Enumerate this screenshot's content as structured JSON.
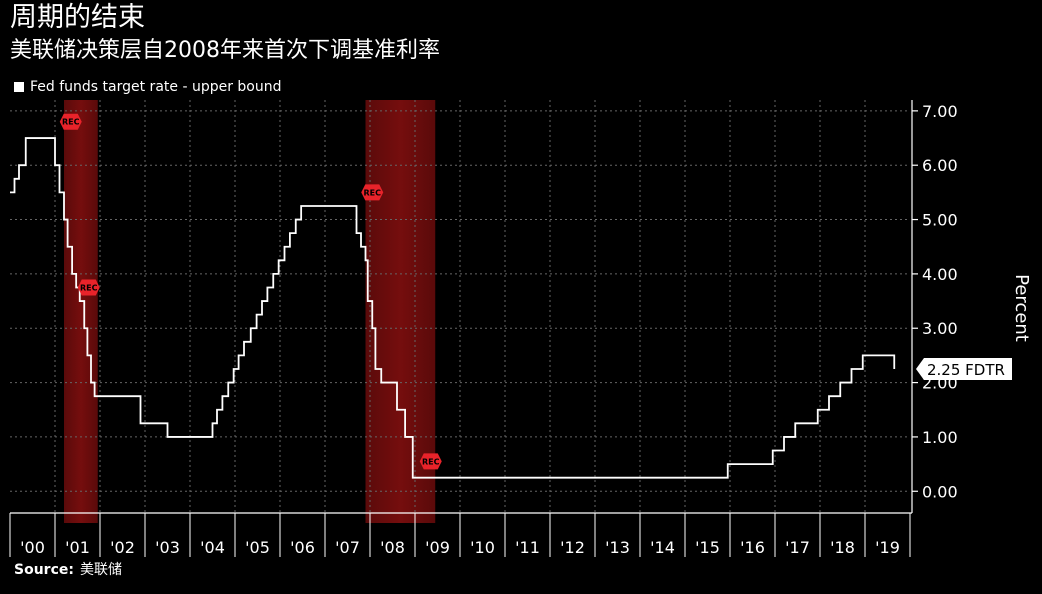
{
  "header": {
    "title": "周期的结束",
    "subtitle": "美联储决策层自2008年来首次下调基准利率"
  },
  "legend": {
    "label": "Fed funds target rate - upper bound",
    "color": "#ffffff"
  },
  "source": {
    "label": "Source:",
    "value": "美联储"
  },
  "last_value": {
    "label": "2.25 FDTR"
  },
  "colors": {
    "line": "#ffffff",
    "recession": "#8a1010",
    "rec_tag": "#e8232a",
    "grid": "#666666",
    "background": "#000000"
  },
  "chart_data": {
    "type": "line",
    "ylabel": "Percent",
    "ylim": [
      -0.4,
      7.2
    ],
    "xlim": [
      2000.0,
      2020.0
    ],
    "yticks": [
      7,
      6,
      5,
      4,
      3,
      2,
      1,
      0
    ],
    "ytick_labels": [
      "7.00",
      "6.00",
      "5.00",
      "4.00",
      "3.00",
      "2.00",
      "1.00",
      "0.00"
    ],
    "xtick_labels": [
      "'00",
      "'01",
      "'02",
      "'03",
      "'04",
      "'05",
      "'06",
      "'07",
      "'08",
      "'09",
      "'10",
      "'11",
      "'12",
      "'13",
      "'14",
      "'15",
      "'16",
      "'17",
      "'18",
      "'19"
    ],
    "grid": true,
    "recessions": [
      {
        "start": 2001.2,
        "end": 2001.95,
        "label": "REC"
      },
      {
        "start": 2007.9,
        "end": 2009.45,
        "label": "REC"
      }
    ],
    "rec_tags": [
      {
        "x": 2001.35,
        "y": 6.8
      },
      {
        "x": 2001.75,
        "y": 3.75
      },
      {
        "x": 2008.05,
        "y": 5.5
      },
      {
        "x": 2009.35,
        "y": 0.55
      }
    ],
    "series": [
      {
        "name": "Fed funds target rate - upper bound",
        "step": true,
        "x": [
          2000.0,
          2000.1,
          2000.2,
          2000.35,
          2001.0,
          2001.1,
          2001.2,
          2001.28,
          2001.38,
          2001.47,
          2001.55,
          2001.65,
          2001.72,
          2001.8,
          2001.88,
          2001.95,
          2002.9,
          2003.5,
          2004.5,
          2004.6,
          2004.72,
          2004.85,
          2004.97,
          2005.08,
          2005.2,
          2005.35,
          2005.48,
          2005.6,
          2005.72,
          2005.85,
          2005.97,
          2006.1,
          2006.22,
          2006.35,
          2006.47,
          2006.6,
          2007.7,
          2007.8,
          2007.9,
          2007.95,
          2008.05,
          2008.12,
          2008.25,
          2008.35,
          2008.6,
          2008.78,
          2008.95,
          2015.95,
          2016.95,
          2017.2,
          2017.45,
          2017.95,
          2018.2,
          2018.45,
          2018.7,
          2018.95,
          2019.58,
          2019.65
        ],
        "values": [
          5.5,
          5.75,
          6.0,
          6.5,
          6.0,
          5.5,
          5.0,
          4.5,
          4.0,
          3.75,
          3.5,
          3.0,
          2.5,
          2.0,
          1.75,
          1.75,
          1.25,
          1.0,
          1.25,
          1.5,
          1.75,
          2.0,
          2.25,
          2.5,
          2.75,
          3.0,
          3.25,
          3.5,
          3.75,
          4.0,
          4.25,
          4.5,
          4.75,
          5.0,
          5.25,
          5.25,
          4.75,
          4.5,
          4.25,
          3.5,
          3.0,
          2.25,
          2.0,
          2.0,
          1.5,
          1.0,
          0.25,
          0.5,
          0.75,
          1.0,
          1.25,
          1.5,
          1.75,
          2.0,
          2.25,
          2.5,
          2.5,
          2.25
        ]
      }
    ]
  }
}
